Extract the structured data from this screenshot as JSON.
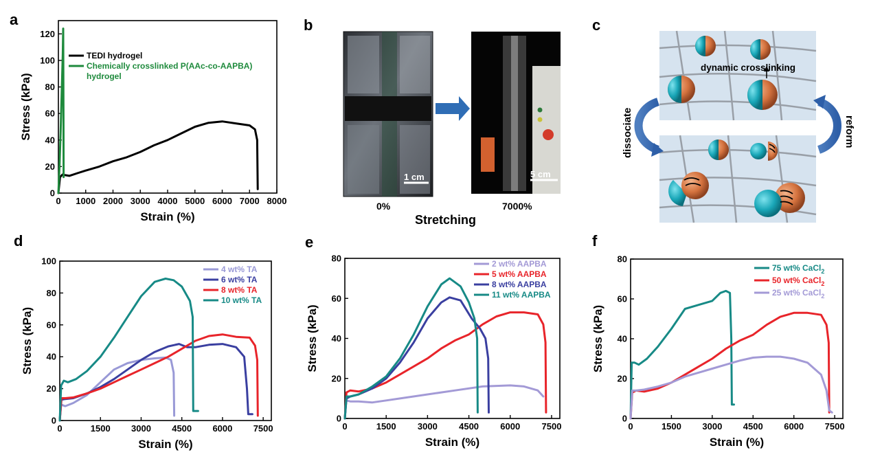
{
  "panel_labels": {
    "a": "a",
    "b": "b",
    "c": "c",
    "d": "d",
    "e": "e",
    "f": "f"
  },
  "panel_b": {
    "scale_left": "1 cm",
    "scale_right": "5 cm",
    "label_left": "0%",
    "label_right": "7000%",
    "caption": "Stretching"
  },
  "panel_c": {
    "top_label": "dynamic crosslinking",
    "left_label": "dissociate",
    "right_label": "reform"
  },
  "chart_data": [
    {
      "id": "a",
      "type": "line",
      "xlabel": "Strain (%)",
      "ylabel": "Stress (kPa)",
      "xlim": [
        0,
        8000
      ],
      "ylim": [
        0,
        130
      ],
      "xticks": [
        0,
        1000,
        2000,
        3000,
        4000,
        5000,
        6000,
        7000,
        8000
      ],
      "yticks": [
        0,
        20,
        40,
        60,
        80,
        100,
        120
      ],
      "legend_position": "top-left",
      "series": [
        {
          "name": "TEDI hydrogel",
          "color": "#000000",
          "x": [
            0,
            60,
            150,
            250,
            400,
            700,
            1000,
            1500,
            2000,
            2500,
            3000,
            3500,
            4000,
            4500,
            5000,
            5500,
            6000,
            6500,
            7000,
            7200,
            7280,
            7300
          ],
          "y": [
            0,
            12,
            14,
            13.5,
            13,
            15,
            17,
            20,
            24,
            27,
            31,
            36,
            40,
            45,
            50,
            53,
            54,
            52.5,
            51,
            48,
            40,
            3
          ]
        },
        {
          "name": "Chemically crosslinked P(AAc-co-AAPBA)",
          "name_line2": "hydrogel",
          "color": "#1e8a3c",
          "x": [
            0,
            40,
            80,
            120,
            160,
            175,
            185,
            190
          ],
          "y": [
            0,
            20,
            45,
            75,
            105,
            124,
            60,
            12
          ]
        }
      ]
    },
    {
      "id": "d",
      "type": "line",
      "xlabel": "Strain (%)",
      "ylabel": "Stress (kPa)",
      "xlim": [
        0,
        7800
      ],
      "ylim": [
        0,
        100
      ],
      "xticks": [
        0,
        1500,
        3000,
        4500,
        6000,
        7500
      ],
      "yticks": [
        0,
        20,
        40,
        60,
        80,
        100
      ],
      "legend_position": "top-right",
      "series": [
        {
          "name": "4 wt% TA",
          "color": "#9999d6",
          "x": [
            0,
            50,
            200,
            500,
            1000,
            1500,
            2000,
            2500,
            3000,
            3500,
            3900,
            4100,
            4200,
            4220
          ],
          "y": [
            0,
            10,
            9,
            11,
            16,
            24,
            32,
            36,
            38,
            39,
            39.5,
            38,
            30,
            3
          ]
        },
        {
          "name": "6 wt% TA",
          "color": "#3a3fa0",
          "x": [
            0,
            60,
            200,
            500,
            1000,
            1500,
            2000,
            2500,
            3000,
            3500,
            4000,
            4400,
            4700,
            5000,
            5500,
            6000,
            6500,
            6800,
            6900,
            6950,
            7100
          ],
          "y": [
            0,
            13,
            13.5,
            14,
            17,
            21,
            26,
            32,
            38,
            43,
            46.5,
            48,
            46,
            46,
            47.5,
            48,
            46,
            40,
            20,
            4,
            4
          ]
        },
        {
          "name": "8 wt% TA",
          "color": "#e8242a",
          "x": [
            0,
            60,
            200,
            500,
            1000,
            1500,
            2000,
            2500,
            3000,
            3500,
            4000,
            4500,
            5000,
            5500,
            6000,
            6500,
            7000,
            7200,
            7280,
            7300
          ],
          "y": [
            0,
            14,
            14,
            14.5,
            17,
            20,
            24,
            28,
            32,
            36,
            40,
            45,
            50,
            53,
            54,
            52.5,
            52,
            47,
            38,
            3
          ]
        },
        {
          "name": "10 wt% TA",
          "color": "#178a86",
          "x": [
            0,
            50,
            150,
            300,
            600,
            1000,
            1500,
            2000,
            2500,
            3000,
            3500,
            3900,
            4200,
            4500,
            4800,
            4900,
            4920,
            5100
          ],
          "y": [
            0,
            22,
            25,
            24,
            26,
            31,
            40,
            52,
            65,
            78,
            87,
            89,
            88,
            84,
            75,
            65,
            6,
            6
          ]
        }
      ]
    },
    {
      "id": "e",
      "type": "line",
      "xlabel": "Strain (%)",
      "ylabel": "Stress (kPa)",
      "xlim": [
        0,
        7800
      ],
      "ylim": [
        0,
        80
      ],
      "xticks": [
        0,
        1500,
        3000,
        4500,
        6000,
        7500
      ],
      "yticks": [
        0,
        20,
        40,
        60,
        80
      ],
      "legend_position": "top-right",
      "series": [
        {
          "name": "2 wt% AAPBA",
          "color": "#a39ad6",
          "x": [
            0,
            50,
            200,
            500,
            1000,
            1500,
            2000,
            3000,
            4000,
            5000,
            6000,
            6500,
            7000,
            7200
          ],
          "y": [
            0,
            9,
            8.5,
            8.5,
            8,
            9,
            10,
            12,
            14,
            16,
            16.5,
            16,
            14,
            11
          ]
        },
        {
          "name": "5 wt% AAPBA",
          "color": "#e8242a",
          "x": [
            0,
            60,
            200,
            500,
            1000,
            1500,
            2000,
            2500,
            3000,
            3500,
            4000,
            4500,
            5000,
            5500,
            6000,
            6500,
            7000,
            7200,
            7280,
            7300
          ],
          "y": [
            0,
            13,
            14,
            13.5,
            15,
            18,
            22,
            26,
            30,
            35,
            39,
            42,
            47,
            51,
            53,
            53,
            52,
            47,
            38,
            3
          ]
        },
        {
          "name": "8 wt% AAPBA",
          "color": "#3a3fa0",
          "x": [
            0,
            60,
            200,
            500,
            1000,
            1500,
            2000,
            2500,
            3000,
            3500,
            3800,
            4200,
            4600,
            4900,
            5100,
            5200,
            5220
          ],
          "y": [
            0,
            10,
            11,
            12,
            15,
            20,
            28,
            38,
            50,
            58,
            60.5,
            59,
            50,
            45,
            40,
            30,
            3
          ]
        },
        {
          "name": "11 wt% AAPBA",
          "color": "#178a86",
          "x": [
            0,
            60,
            200,
            500,
            1000,
            1500,
            2000,
            2500,
            3000,
            3500,
            3800,
            4200,
            4500,
            4700,
            4800,
            4820
          ],
          "y": [
            0,
            11,
            11,
            12,
            16,
            21,
            30,
            42,
            56,
            67,
            70,
            66,
            58,
            50,
            40,
            3
          ]
        }
      ]
    },
    {
      "id": "f",
      "type": "line",
      "xlabel": "Strain (%)",
      "ylabel": "Stress (kPa)",
      "xlim": [
        0,
        7800
      ],
      "ylim": [
        0,
        80
      ],
      "xticks": [
        0,
        1500,
        3000,
        4500,
        6000,
        7500
      ],
      "yticks": [
        0,
        20,
        40,
        60,
        80
      ],
      "legend_position": "top-right",
      "series": [
        {
          "name": "75 wt% CaCl",
          "sub": "2",
          "color": "#178a86",
          "x": [
            0,
            40,
            150,
            300,
            600,
            1000,
            1500,
            2000,
            2500,
            3000,
            3300,
            3500,
            3650,
            3700,
            3720,
            3800
          ],
          "y": [
            0,
            28,
            28,
            27,
            30,
            36,
            45,
            55,
            57,
            59,
            63,
            64,
            63,
            40,
            7,
            7
          ]
        },
        {
          "name": "50 wt% CaCl",
          "sub": "2",
          "color": "#e8242a",
          "x": [
            0,
            60,
            200,
            500,
            1000,
            1500,
            2000,
            2500,
            3000,
            3500,
            4000,
            4500,
            5000,
            5500,
            6000,
            6500,
            7000,
            7200,
            7280,
            7300
          ],
          "y": [
            0,
            13,
            14,
            13.5,
            15,
            18,
            22,
            26,
            30,
            35,
            39,
            42,
            47,
            51,
            53,
            53,
            52,
            47,
            38,
            3
          ]
        },
        {
          "name": "25 wt% CaCl",
          "sub": "2",
          "color": "#a39ad6",
          "x": [
            0,
            60,
            200,
            500,
            1000,
            1500,
            2000,
            2500,
            3000,
            3500,
            4000,
            4500,
            5000,
            5500,
            6000,
            6500,
            7000,
            7200,
            7300,
            7400
          ],
          "y": [
            0,
            14,
            14,
            14.5,
            16,
            18,
            21,
            23,
            25,
            27,
            29,
            30.5,
            31,
            31,
            30,
            28,
            22,
            14,
            4,
            3
          ]
        }
      ]
    }
  ]
}
